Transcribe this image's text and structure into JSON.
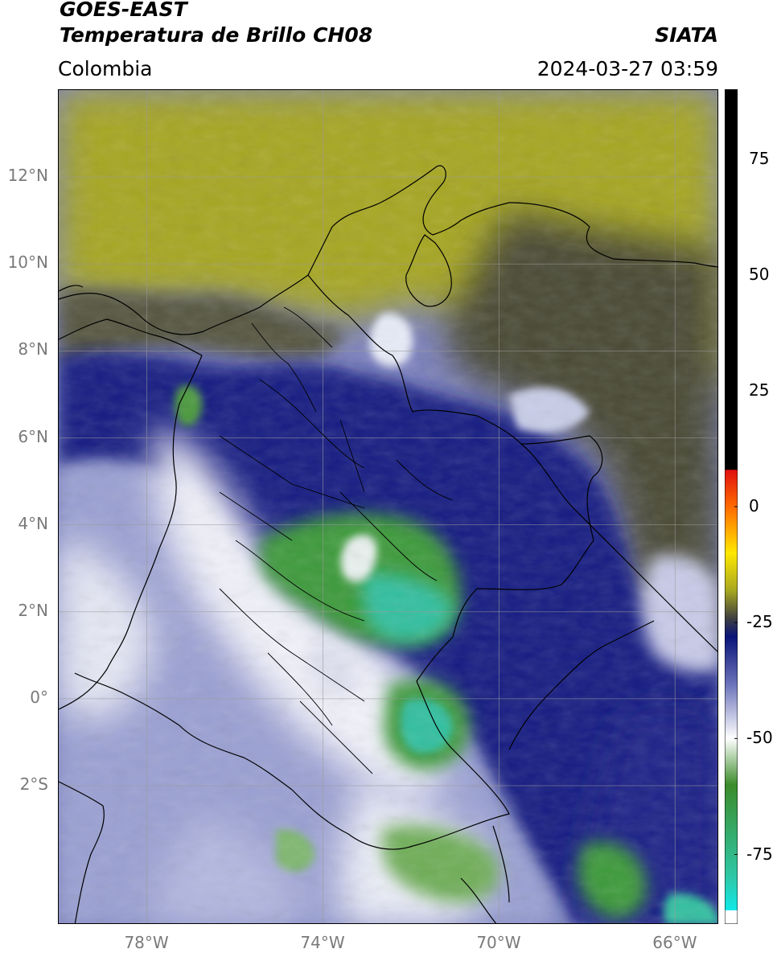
{
  "header": {
    "satellite": "GOES-EAST",
    "product": "Temperatura de Brillo CH08",
    "region": "Colombia",
    "agency": "SIATA",
    "datetime": "2024-03-27 03:59"
  },
  "axes": {
    "lat_labels": [
      "12°N",
      "10°N",
      "8°N",
      "6°N",
      "4°N",
      "2°N",
      "0°",
      "2°S"
    ],
    "lat_values": [
      12,
      10,
      8,
      6,
      4,
      2,
      0,
      -2
    ],
    "lon_labels": [
      "78°W",
      "74°W",
      "70°W",
      "66°W"
    ],
    "lon_values": [
      -78,
      -74,
      -70,
      -66
    ],
    "extent": {
      "lon_min": -80,
      "lon_max": -65,
      "lat_min": -5.2,
      "lat_max": 14
    }
  },
  "colorbar": {
    "labels": [
      "75",
      "50",
      "25",
      "0",
      "-25",
      "-50",
      "-75"
    ],
    "values": [
      75,
      50,
      25,
      0,
      -25,
      -50,
      -75
    ],
    "range": [
      -90,
      90
    ],
    "stops": [
      {
        "value": 90,
        "color": "#000000"
      },
      {
        "value": 8,
        "color": "#000000"
      },
      {
        "value": 7.9,
        "color": "#e01010"
      },
      {
        "value": 0,
        "color": "#ff6a00"
      },
      {
        "value": -10,
        "color": "#ffe800"
      },
      {
        "value": -18,
        "color": "#a8a820"
      },
      {
        "value": -24,
        "color": "#404040"
      },
      {
        "value": -28,
        "color": "#0a1478"
      },
      {
        "value": -38,
        "color": "#6870b8"
      },
      {
        "value": -50,
        "color": "#ffffff"
      },
      {
        "value": -60,
        "color": "#3c8c2a"
      },
      {
        "value": -80,
        "color": "#2ec8a8"
      },
      {
        "value": -87,
        "color": "#10e8e8"
      },
      {
        "value": -87.1,
        "color": "#ffffff"
      },
      {
        "value": -90,
        "color": "#ffffff"
      }
    ]
  },
  "colors": {
    "dry_olive": "#a6a624",
    "dark_grey": "#4a4a3a",
    "navy": "#141e82",
    "lavender": "#8c92c8",
    "cold_green": "#3e9a3a",
    "cold_teal": "#30bfa0"
  }
}
